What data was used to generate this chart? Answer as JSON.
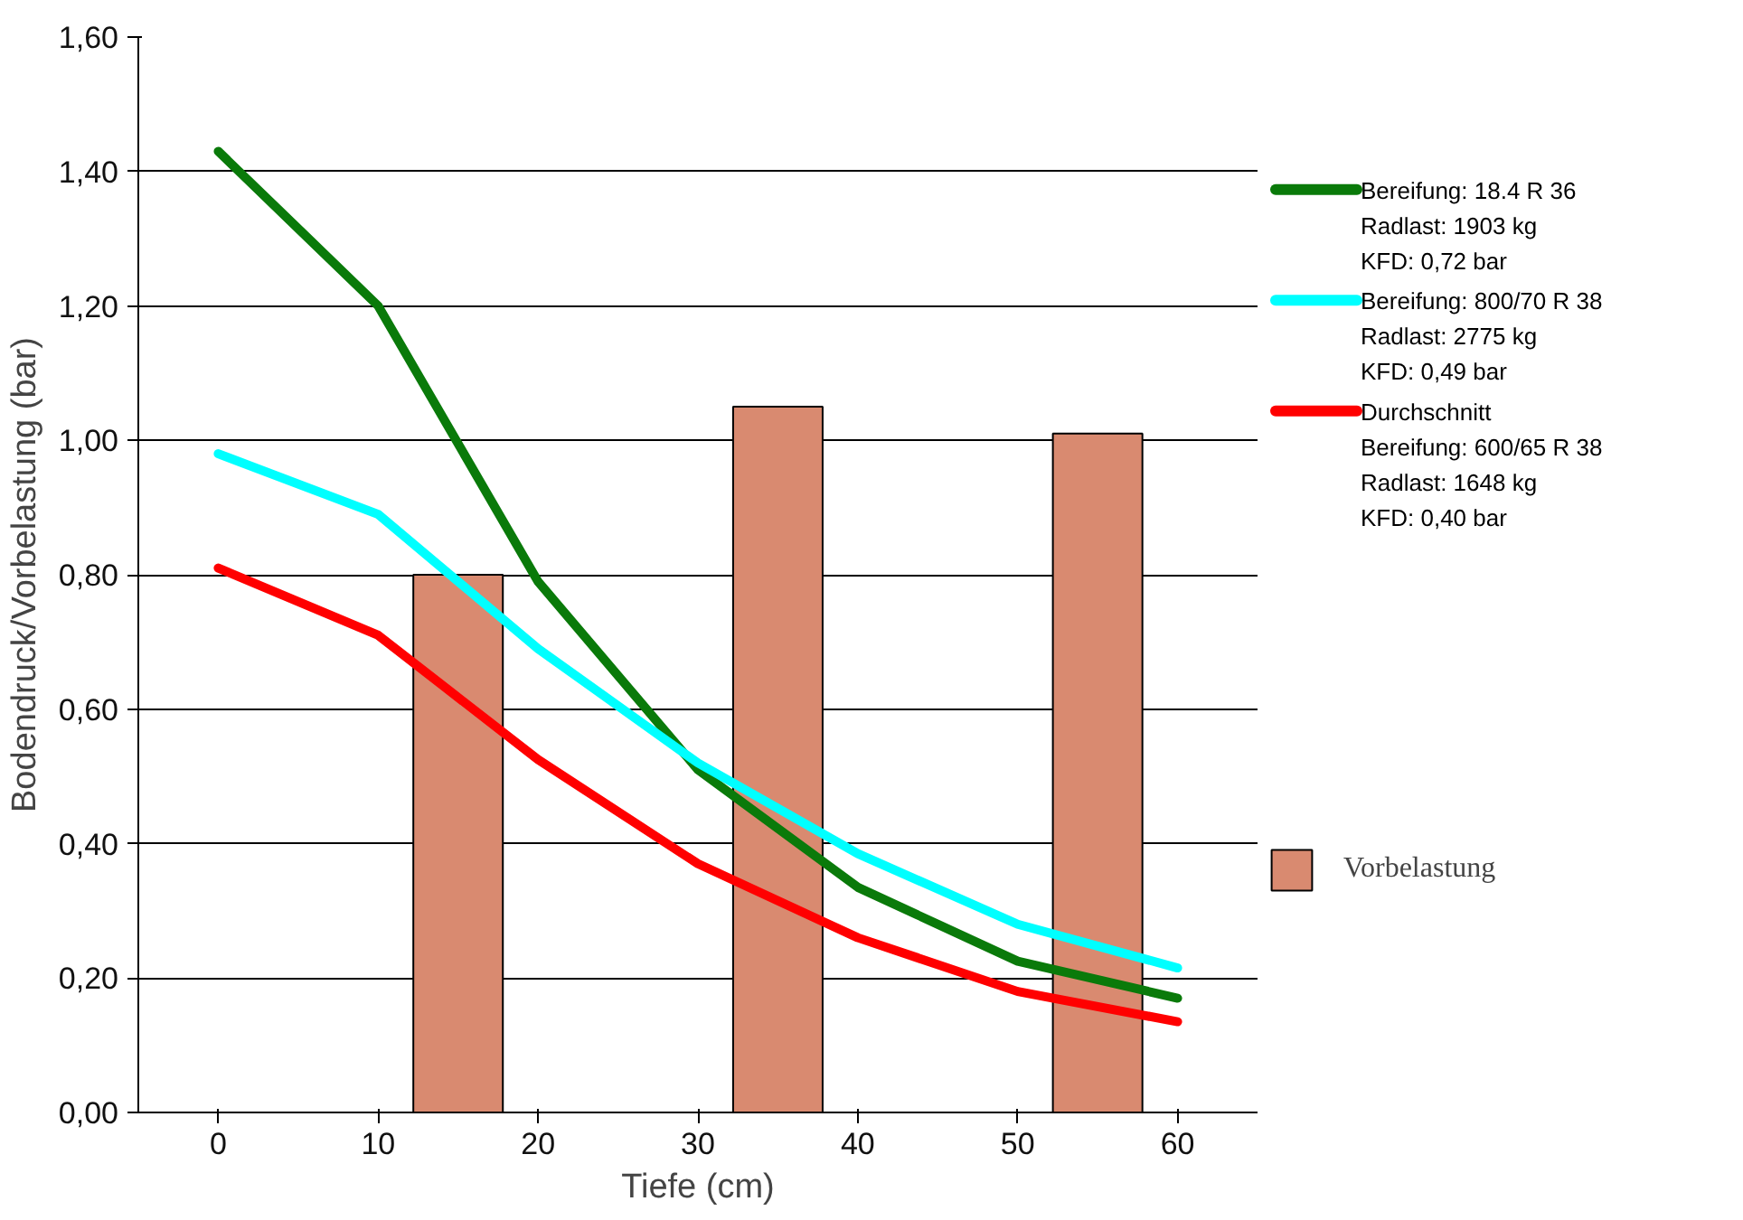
{
  "chart_data": {
    "type": "line",
    "xlabel": "Tiefe (cm)",
    "ylabel": "Bodendruck/Vorbelastung (bar)",
    "xlim": [
      -5,
      65
    ],
    "xticks": [
      0,
      10,
      20,
      30,
      40,
      50,
      60
    ],
    "ylim": [
      0,
      1.6
    ],
    "yticks": [
      {
        "value": 0,
        "label": "0,00"
      },
      {
        "value": 0.2,
        "label": "0,20"
      },
      {
        "value": 0.4,
        "label": "0,40"
      },
      {
        "value": 0.6,
        "label": "0,60"
      },
      {
        "value": 0.8,
        "label": "0,80"
      },
      {
        "value": 1.0,
        "label": "1,00"
      },
      {
        "value": 1.2,
        "label": "1,20"
      },
      {
        "value": 1.4,
        "label": "1,40"
      },
      {
        "value": 1.6,
        "label": "1,60"
      }
    ],
    "x": [
      0,
      10,
      20,
      30,
      40,
      50,
      60
    ],
    "grid": "y",
    "legend": "right",
    "series": [
      {
        "name": "Bereifung: 18.4 R 36\nRadlast: 1903 kg\nKFD: 0,72 bar",
        "color": "#0a7a0a",
        "values": [
          1.43,
          1.2,
          0.79,
          0.51,
          0.335,
          0.225,
          0.17
        ]
      },
      {
        "name": "Bereifung: 800/70 R 38\nRadlast: 2775 kg\nKFD: 0,49 bar",
        "color": "#00ffff",
        "values": [
          0.98,
          0.89,
          0.69,
          0.52,
          0.385,
          0.28,
          0.215
        ]
      },
      {
        "name": "Durchschnitt\nBereifung: 600/65 R 38\nRadlast: 1648 kg\nKFD: 0,40 bar",
        "color": "#ff0000",
        "values": [
          0.81,
          0.71,
          0.525,
          0.37,
          0.26,
          0.18,
          0.135
        ]
      },
      {
        "name": "Vorbelastung",
        "type": "bar",
        "color": "#d98a70",
        "x": [
          15,
          35,
          55
        ],
        "values": [
          0.8,
          1.05,
          1.01
        ]
      }
    ]
  }
}
